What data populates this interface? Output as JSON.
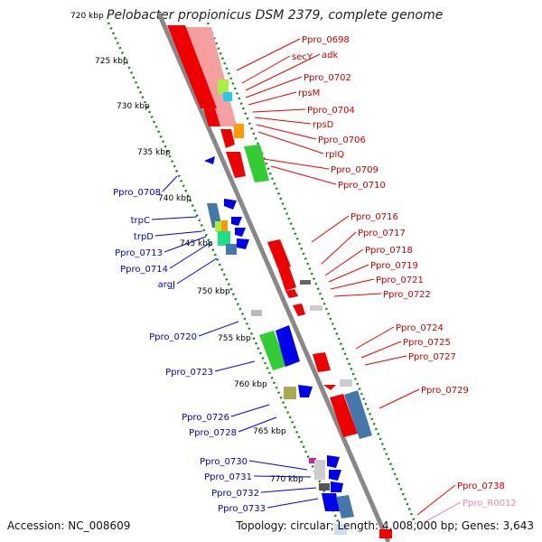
{
  "title": "Pelobacter propionicus DSM 2379, complete genome",
  "accession": "Accession: NC_008609",
  "summary": "Topology: circular; Length: 4,008,000 bp; Genes: 3,643",
  "colors": {
    "forward": "#ee0000",
    "reverse": "#0000ee",
    "rna": "#ee88aa",
    "tick": "#118811",
    "backbone": "#888888"
  },
  "scale_ticks": [
    "720 kbp",
    "725 kbp",
    "730 kbp",
    "735 kbp",
    "740 kbp",
    "745 kbp",
    "750 kbp",
    "755 kbp",
    "760 kbp",
    "765 kbp",
    "770 kbp"
  ],
  "labels_right": [
    "Ppro_0698",
    "secY",
    "adk",
    "Ppro_0702",
    "rpsM",
    "Ppro_0704",
    "rpsD",
    "Ppro_0706",
    "rplQ",
    "Ppro_0709",
    "Ppro_0710",
    "Ppro_0716",
    "Ppro_0717",
    "Ppro_0718",
    "Ppro_0719",
    "Ppro_0721",
    "Ppro_0722",
    "Ppro_0724",
    "Ppro_0725",
    "Ppro_0727",
    "Ppro_0729",
    "Ppro_0738"
  ],
  "labels_rna": [
    "Ppro_R0012"
  ],
  "labels_left": [
    "Ppro_0708",
    "trpC",
    "trpD",
    "Ppro_0713",
    "Ppro_0714",
    "argJ",
    "Ppro_0720",
    "Ppro_0723",
    "Ppro_0726",
    "Ppro_0728",
    "Ppro_0730",
    "Ppro_0731",
    "Ppro_0732",
    "Ppro_0733"
  ]
}
